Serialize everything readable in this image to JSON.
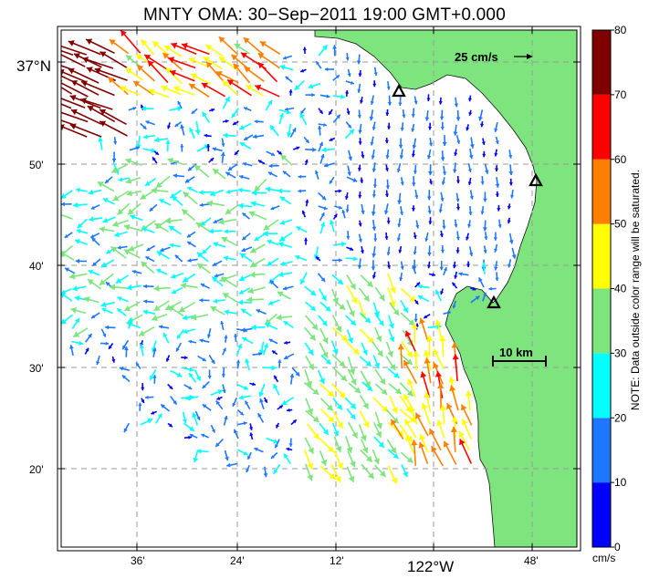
{
  "title": "MNTY OMA: 30−Sep−2011 19:00 GMT+0.000",
  "map": {
    "lat_corner_label": "37°N",
    "lat_labels": [
      "50'",
      "40'",
      "30'",
      "20'"
    ],
    "lon_labels": [
      "36'",
      "24'",
      "12'",
      "122°W",
      "48'"
    ],
    "land_color": "#7ee47e",
    "water_color": "#ffffff",
    "station_marker": "triangle-icon"
  },
  "scale": {
    "speed_label": "25 cm/s",
    "distance_label": "10 km"
  },
  "colorbar": {
    "ticks": [
      "80",
      "70",
      "60",
      "50",
      "40",
      "30",
      "20",
      "10",
      "0"
    ],
    "unit": "cm/s",
    "note": "NOTE: Data outside color range will be saturated.",
    "colors": [
      "#0000ff",
      "#1e78ff",
      "#00ffff",
      "#7ee47e",
      "#ffff00",
      "#ff8000",
      "#ff0000",
      "#800000"
    ]
  }
}
